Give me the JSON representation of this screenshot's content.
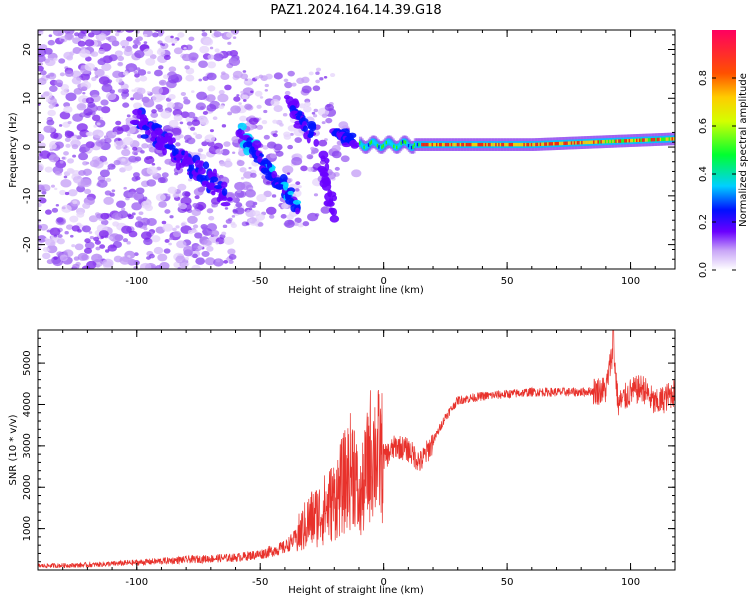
{
  "title": "PAZ1.2024.164.14.39.G18",
  "chart_data": [
    {
      "type": "heatmap",
      "xlabel": "Height of straight line (km)",
      "ylabel": "Frequency (Hz)",
      "xlim": [
        -140,
        118
      ],
      "ylim": [
        -25,
        24
      ],
      "xticks": [
        -100,
        -50,
        0,
        50,
        100
      ],
      "yticks": [
        -20,
        -10,
        0,
        10,
        20
      ],
      "colorbar": {
        "label": "Normalized spectral amplitude",
        "range": [
          0,
          1
        ],
        "ticks": [
          0.0,
          0.2,
          0.4,
          0.6,
          0.8
        ]
      },
      "ridge": [
        {
          "x": -95,
          "y": 4
        },
        {
          "x": -85,
          "y": 1
        },
        {
          "x": -75,
          "y": -6
        },
        {
          "x": -65,
          "y": -9
        },
        {
          "x": -55,
          "y": 2
        },
        {
          "x": -48,
          "y": -5
        },
        {
          "x": -40,
          "y": -11
        },
        {
          "x": -33,
          "y": 5
        },
        {
          "x": -25,
          "y": 0
        },
        {
          "x": -15,
          "y": 2
        },
        {
          "x": -5,
          "y": 0
        },
        {
          "x": 10,
          "y": 1
        },
        {
          "x": 50,
          "y": 1
        },
        {
          "x": 100,
          "y": 1.5
        },
        {
          "x": 118,
          "y": 2
        }
      ]
    },
    {
      "type": "line",
      "xlabel": "Height of straight line (km)",
      "ylabel": "SNR (10 * v/v)",
      "xlim": [
        -140,
        118
      ],
      "ylim": [
        0,
        5800
      ],
      "xticks": [
        -100,
        -50,
        0,
        50,
        100
      ],
      "yticks": [
        1000,
        2000,
        3000,
        4000,
        5000
      ],
      "color": "#e8312b",
      "series": [
        {
          "x": [
            -140,
            -120,
            -100,
            -80,
            -60,
            -50,
            -40,
            -35,
            -30,
            -25,
            -20,
            -15,
            -12,
            -10,
            -5,
            0,
            5,
            10,
            15,
            20,
            25,
            30,
            40,
            50,
            60,
            70,
            80,
            90,
            93,
            95,
            100,
            105,
            110,
            118
          ],
          "y": [
            100,
            120,
            180,
            250,
            300,
            380,
            550,
            800,
            1200,
            1400,
            1700,
            2200,
            2600,
            1500,
            2900,
            2700,
            3000,
            2900,
            2600,
            3100,
            3700,
            4100,
            4200,
            4250,
            4300,
            4300,
            4300,
            4350,
            5400,
            4000,
            4300,
            4400,
            4000,
            4300
          ]
        }
      ]
    }
  ]
}
